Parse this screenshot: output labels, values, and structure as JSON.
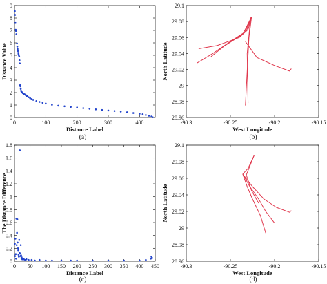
{
  "chart_data": [
    {
      "id": "a",
      "type": "scatter",
      "caption": "(a)",
      "xlabel": "Distance Label",
      "ylabel": "Distance Value",
      "xlim": [
        0,
        450
      ],
      "ylim": [
        0,
        9
      ],
      "xticks": [
        0,
        100,
        200,
        300,
        400
      ],
      "yticks": [
        0,
        1,
        2,
        3,
        4,
        5,
        6,
        7,
        8,
        9
      ],
      "color": "#2244cc",
      "points": [
        [
          1,
          8.55
        ],
        [
          2,
          8.25
        ],
        [
          3,
          7.6
        ],
        [
          4,
          7.05
        ],
        [
          5,
          6.95
        ],
        [
          6,
          6.7
        ],
        [
          8,
          5.95
        ],
        [
          9,
          5.7
        ],
        [
          10,
          5.5
        ],
        [
          11,
          5.35
        ],
        [
          12,
          5.2
        ],
        [
          13,
          5.1
        ],
        [
          14,
          5.0
        ],
        [
          15,
          4.9
        ],
        [
          16,
          4.6
        ],
        [
          17,
          4.35
        ],
        [
          18,
          2.6
        ],
        [
          19,
          2.5
        ],
        [
          20,
          2.3
        ],
        [
          21,
          2.15
        ],
        [
          22,
          2.1
        ],
        [
          23,
          2.05
        ],
        [
          25,
          2.0
        ],
        [
          27,
          1.95
        ],
        [
          30,
          1.9
        ],
        [
          33,
          1.85
        ],
        [
          36,
          1.8
        ],
        [
          40,
          1.72
        ],
        [
          45,
          1.63
        ],
        [
          50,
          1.55
        ],
        [
          55,
          1.48
        ],
        [
          60,
          1.42
        ],
        [
          70,
          1.32
        ],
        [
          80,
          1.25
        ],
        [
          90,
          1.18
        ],
        [
          100,
          1.12
        ],
        [
          120,
          1.02
        ],
        [
          140,
          0.95
        ],
        [
          160,
          0.9
        ],
        [
          180,
          0.85
        ],
        [
          200,
          0.8
        ],
        [
          220,
          0.75
        ],
        [
          240,
          0.7
        ],
        [
          260,
          0.65
        ],
        [
          280,
          0.6
        ],
        [
          300,
          0.56
        ],
        [
          320,
          0.52
        ],
        [
          340,
          0.47
        ],
        [
          360,
          0.42
        ],
        [
          380,
          0.36
        ],
        [
          400,
          0.3
        ],
        [
          410,
          0.26
        ],
        [
          420,
          0.2
        ],
        [
          430,
          0.14
        ],
        [
          438,
          0.08
        ],
        [
          442,
          0.02
        ]
      ]
    },
    {
      "id": "b",
      "type": "line",
      "caption": "(b)",
      "xlabel": "West Longitude",
      "ylabel": "North Latitude",
      "xlim": [
        -90.3,
        -90.15
      ],
      "ylim": [
        28.96,
        29.1
      ],
      "xticks": [
        -90.3,
        -90.25,
        -90.2,
        -90.15
      ],
      "yticks": [
        28.96,
        28.98,
        29,
        29.02,
        29.04,
        29.06,
        29.08,
        29.1
      ],
      "color": "#e0384d",
      "series": [
        {
          "points": [
            [
              -90.226,
              29.086
            ],
            [
              -90.23,
              29.07
            ],
            [
              -90.24,
              29.06
            ],
            [
              -90.265,
              29.05
            ],
            [
              -90.286,
              29.046
            ]
          ]
        },
        {
          "points": [
            [
              -90.226,
              29.086
            ],
            [
              -90.232,
              29.068
            ],
            [
              -90.25,
              29.055
            ],
            [
              -90.27,
              29.04
            ],
            [
              -90.288,
              29.028
            ]
          ]
        },
        {
          "points": [
            [
              -90.226,
              29.086
            ],
            [
              -90.234,
              29.066
            ],
            [
              -90.254,
              29.052
            ],
            [
              -90.272,
              29.036
            ]
          ]
        },
        {
          "points": [
            [
              -90.226,
              29.086
            ],
            [
              -90.236,
              29.064
            ],
            [
              -90.256,
              29.05
            ]
          ]
        },
        {
          "points": [
            [
              -90.226,
              29.086
            ],
            [
              -90.229,
              29.06
            ],
            [
              -90.233,
              28.975
            ]
          ]
        },
        {
          "points": [
            [
              -90.227,
              29.085
            ],
            [
              -90.231,
              29.04
            ],
            [
              -90.23,
              28.978
            ]
          ]
        },
        {
          "points": [
            [
              -90.233,
              29.055
            ],
            [
              -90.22,
              29.035
            ],
            [
              -90.2,
              29.025
            ],
            [
              -90.183,
              29.018
            ],
            [
              -90.181,
              29.021
            ]
          ]
        }
      ]
    },
    {
      "id": "c",
      "type": "scatter",
      "caption": "(c)",
      "xlabel": "Distance Label",
      "ylabel": "The Distance Difference",
      "xlim": [
        0,
        450
      ],
      "ylim": [
        0,
        1.8
      ],
      "xticks": [
        0,
        50,
        100,
        150,
        200,
        250,
        300,
        350,
        400,
        450
      ],
      "yticks": [
        0,
        0.2,
        0.4,
        0.6,
        0.8,
        1,
        1.2,
        1.4,
        1.6,
        1.8
      ],
      "color": "#2244cc",
      "points": [
        [
          1,
          0.27
        ],
        [
          2,
          0.08
        ],
        [
          3,
          0.35
        ],
        [
          4,
          0.11
        ],
        [
          5,
          0.04
        ],
        [
          6,
          0.66
        ],
        [
          7,
          0.25
        ],
        [
          8,
          0.44
        ],
        [
          9,
          0.65
        ],
        [
          10,
          0.29
        ],
        [
          11,
          0.2
        ],
        [
          12,
          0.17
        ],
        [
          13,
          0.1
        ],
        [
          14,
          0.07
        ],
        [
          15,
          0.33
        ],
        [
          16,
          0.13
        ],
        [
          17,
          1.72
        ],
        [
          18,
          0.12
        ],
        [
          19,
          0.08
        ],
        [
          20,
          0.25
        ],
        [
          21,
          0.09
        ],
        [
          22,
          0.05
        ],
        [
          23,
          0.06
        ],
        [
          24,
          0.04
        ],
        [
          25,
          0.03
        ],
        [
          27,
          0.04
        ],
        [
          30,
          0.03
        ],
        [
          34,
          0.02
        ],
        [
          38,
          0.03
        ],
        [
          45,
          0.02
        ],
        [
          55,
          0.02
        ],
        [
          65,
          0.01
        ],
        [
          80,
          0.02
        ],
        [
          100,
          0.01
        ],
        [
          120,
          0.01
        ],
        [
          150,
          0.01
        ],
        [
          180,
          0.01
        ],
        [
          200,
          0.01
        ],
        [
          250,
          0.01
        ],
        [
          300,
          0.01
        ],
        [
          350,
          0.01
        ],
        [
          400,
          0.01
        ],
        [
          420,
          0.02
        ],
        [
          436,
          0.04
        ],
        [
          438,
          0.07
        ],
        [
          440,
          0.05
        ]
      ]
    },
    {
      "id": "d",
      "type": "line",
      "caption": "(d)",
      "xlabel": "West Longitude",
      "ylabel": "North Latitude",
      "xlim": [
        -90.3,
        -90.15
      ],
      "ylim": [
        28.96,
        29.1
      ],
      "xticks": [
        -90.3,
        -90.25,
        -90.2,
        -90.15
      ],
      "yticks": [
        28.96,
        28.98,
        29,
        29.02,
        29.04,
        29.06,
        29.08,
        29.1
      ],
      "color": "#e0384d",
      "series": [
        {
          "points": [
            [
              -90.223,
              29.088
            ],
            [
              -90.23,
              29.072
            ],
            [
              -90.236,
              29.065
            ],
            [
              -90.231,
              29.05
            ],
            [
              -90.225,
              29.035
            ],
            [
              -90.216,
              29.015
            ],
            [
              -90.21,
              28.994
            ]
          ]
        },
        {
          "points": [
            [
              -90.236,
              29.065
            ],
            [
              -90.228,
              29.05
            ],
            [
              -90.218,
              29.035
            ],
            [
              -90.21,
              29.02
            ],
            [
              -90.2,
              29.006
            ]
          ]
        },
        {
          "points": [
            [
              -90.236,
              29.065
            ],
            [
              -90.225,
              29.05
            ],
            [
              -90.212,
              29.035
            ],
            [
              -90.198,
              29.025
            ],
            [
              -90.183,
              29.019
            ],
            [
              -90.181,
              29.021
            ]
          ]
        },
        {
          "points": [
            [
              -90.223,
              29.088
            ],
            [
              -90.232,
              29.064
            ],
            [
              -90.226,
              29.045
            ],
            [
              -90.218,
              29.03
            ]
          ]
        }
      ]
    }
  ]
}
